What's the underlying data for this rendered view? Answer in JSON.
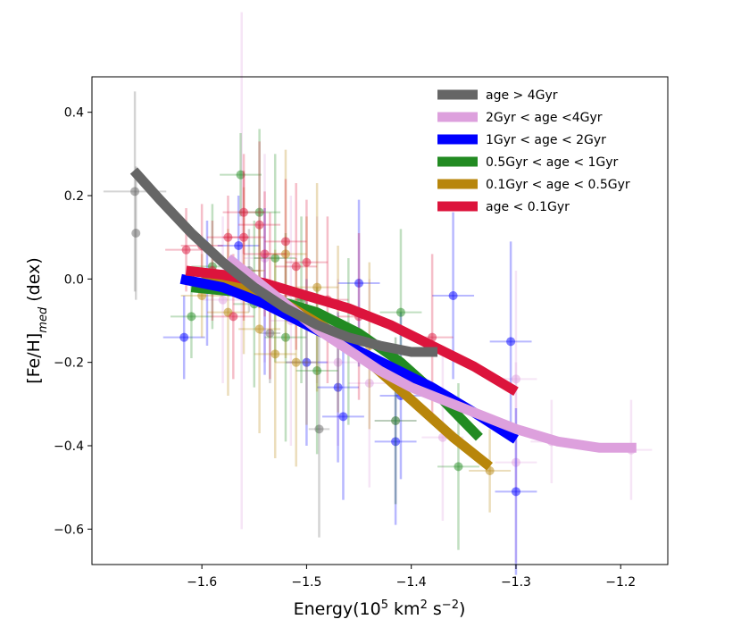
{
  "chart_data": {
    "type": "scatter",
    "title": "",
    "xlabel": "Energy(10⁵ km² s⁻²)",
    "ylabel": "[Fe/H]med (dex)",
    "xlim": [
      -1.705,
      -1.155
    ],
    "ylim": [
      -0.685,
      0.485
    ],
    "xticks": [
      -1.6,
      -1.5,
      -1.4,
      -1.3,
      -1.2
    ],
    "xtick_labels": [
      "−1.6",
      "−1.5",
      "−1.4",
      "−1.3",
      "−1.2"
    ],
    "yticks": [
      0.4,
      0.2,
      0.0,
      -0.2,
      -0.4,
      -0.6
    ],
    "ytick_labels": [
      "0.4",
      "0.2",
      "0.0",
      "−0.2",
      "−0.4",
      "−0.6"
    ],
    "legend_position": "top-right",
    "series": [
      {
        "name": "age > 4Gyr",
        "color": "#666666",
        "fit_x": [
          -1.665,
          -1.64,
          -1.61,
          -1.58,
          -1.55,
          -1.52,
          -1.49,
          -1.46,
          -1.43,
          -1.4,
          -1.375
        ],
        "fit_y": [
          0.26,
          0.19,
          0.11,
          0.04,
          -0.02,
          -0.07,
          -0.11,
          -0.14,
          -0.16,
          -0.175,
          -0.175
        ],
        "points": [
          {
            "x": -1.664,
            "y": 0.21,
            "yerr": 0.24,
            "xerr": 0.03
          },
          {
            "x": -1.663,
            "y": 0.11,
            "yerr": 0.16,
            "xerr": 0.0
          },
          {
            "x": -1.488,
            "y": -0.36,
            "yerr": 0.26,
            "xerr": 0.01
          },
          {
            "x": -1.535,
            "y": -0.13,
            "yerr": 0.12,
            "xerr": 0.01
          },
          {
            "x": -1.555,
            "y": 0.02,
            "yerr": 0.1,
            "xerr": 0.01
          }
        ]
      },
      {
        "name": "2Gyr < age <4Gyr",
        "color": "#dda0dd",
        "fit_x": [
          -1.575,
          -1.55,
          -1.52,
          -1.49,
          -1.46,
          -1.43,
          -1.4,
          -1.37,
          -1.34,
          -1.3,
          -1.26,
          -1.22,
          -1.185
        ],
        "fit_y": [
          0.05,
          0.0,
          -0.06,
          -0.12,
          -0.17,
          -0.22,
          -0.26,
          -0.29,
          -0.32,
          -0.36,
          -0.39,
          -0.405,
          -0.405
        ],
        "points": [
          {
            "x": -1.562,
            "y": 0.02,
            "yerr": 0.62,
            "xerr": 0.02
          },
          {
            "x": -1.515,
            "y": -0.1,
            "yerr": 0.3,
            "xerr": 0.02
          },
          {
            "x": -1.49,
            "y": -0.05,
            "yerr": 0.2,
            "xerr": 0.02
          },
          {
            "x": -1.47,
            "y": -0.2,
            "yerr": 0.2,
            "xerr": 0.02
          },
          {
            "x": -1.44,
            "y": -0.25,
            "yerr": 0.25,
            "xerr": 0.02
          },
          {
            "x": -1.415,
            "y": -0.34,
            "yerr": 0.2,
            "xerr": 0.02
          },
          {
            "x": -1.37,
            "y": -0.38,
            "yerr": 0.2,
            "xerr": 0.02
          },
          {
            "x": -1.3,
            "y": -0.24,
            "yerr": 0.26,
            "xerr": 0.02
          },
          {
            "x": -1.3,
            "y": -0.44,
            "yerr": 0.24,
            "xerr": 0.02
          },
          {
            "x": -1.266,
            "y": -0.39,
            "yerr": 0.1,
            "xerr": 0.02
          },
          {
            "x": -1.19,
            "y": -0.41,
            "yerr": 0.12,
            "xerr": 0.02
          },
          {
            "x": -1.58,
            "y": -0.05,
            "yerr": 0.2,
            "xerr": 0.02
          },
          {
            "x": -1.54,
            "y": 0.05,
            "yerr": 0.25,
            "xerr": 0.02
          }
        ]
      },
      {
        "name": "1Gyr < age < 2Gyr",
        "color": "#0000ff",
        "fit_x": [
          -1.62,
          -1.58,
          -1.54,
          -1.5,
          -1.46,
          -1.42,
          -1.38,
          -1.34,
          -1.3
        ],
        "fit_y": [
          0.0,
          -0.02,
          -0.06,
          -0.11,
          -0.16,
          -0.21,
          -0.26,
          -0.32,
          -0.385
        ],
        "points": [
          {
            "x": -1.617,
            "y": -0.14,
            "yerr": 0.1,
            "xerr": 0.02
          },
          {
            "x": -1.595,
            "y": -0.01,
            "yerr": 0.15,
            "xerr": 0.02
          },
          {
            "x": -1.565,
            "y": 0.08,
            "yerr": 0.12,
            "xerr": 0.02
          },
          {
            "x": -1.54,
            "y": -0.03,
            "yerr": 0.2,
            "xerr": 0.02
          },
          {
            "x": -1.5,
            "y": -0.2,
            "yerr": 0.2,
            "xerr": 0.02
          },
          {
            "x": -1.47,
            "y": -0.26,
            "yerr": 0.18,
            "xerr": 0.02
          },
          {
            "x": -1.465,
            "y": -0.33,
            "yerr": 0.2,
            "xerr": 0.02
          },
          {
            "x": -1.45,
            "y": -0.01,
            "yerr": 0.2,
            "xerr": 0.02
          },
          {
            "x": -1.415,
            "y": -0.39,
            "yerr": 0.2,
            "xerr": 0.02
          },
          {
            "x": -1.41,
            "y": -0.28,
            "yerr": 0.2,
            "xerr": 0.02
          },
          {
            "x": -1.36,
            "y": -0.04,
            "yerr": 0.2,
            "xerr": 0.02
          },
          {
            "x": -1.305,
            "y": -0.15,
            "yerr": 0.24,
            "xerr": 0.02
          },
          {
            "x": -1.3,
            "y": -0.51,
            "yerr": 0.2,
            "xerr": 0.02
          }
        ]
      },
      {
        "name": "0.5Gyr < age < 1Gyr",
        "color": "#228b22",
        "fit_x": [
          -1.61,
          -1.57,
          -1.53,
          -1.49,
          -1.45,
          -1.41,
          -1.37,
          -1.335
        ],
        "fit_y": [
          -0.02,
          -0.03,
          -0.05,
          -0.08,
          -0.13,
          -0.2,
          -0.29,
          -0.38
        ],
        "points": [
          {
            "x": -1.61,
            "y": -0.09,
            "yerr": 0.1,
            "xerr": 0.02
          },
          {
            "x": -1.59,
            "y": 0.03,
            "yerr": 0.15,
            "xerr": 0.02
          },
          {
            "x": -1.563,
            "y": 0.25,
            "yerr": 0.1,
            "xerr": 0.02
          },
          {
            "x": -1.55,
            "y": -0.06,
            "yerr": 0.2,
            "xerr": 0.02
          },
          {
            "x": -1.545,
            "y": 0.16,
            "yerr": 0.2,
            "xerr": 0.02
          },
          {
            "x": -1.53,
            "y": 0.05,
            "yerr": 0.25,
            "xerr": 0.02
          },
          {
            "x": -1.52,
            "y": -0.14,
            "yerr": 0.25,
            "xerr": 0.02
          },
          {
            "x": -1.505,
            "y": -0.05,
            "yerr": 0.2,
            "xerr": 0.02
          },
          {
            "x": -1.49,
            "y": -0.22,
            "yerr": 0.2,
            "xerr": 0.02
          },
          {
            "x": -1.41,
            "y": -0.08,
            "yerr": 0.2,
            "xerr": 0.02
          },
          {
            "x": -1.415,
            "y": -0.34,
            "yerr": 0.2,
            "xerr": 0.02
          },
          {
            "x": -1.355,
            "y": -0.45,
            "yerr": 0.2,
            "xerr": 0.02
          },
          {
            "x": -1.46,
            "y": -0.15,
            "yerr": 0.2,
            "xerr": 0.02
          }
        ]
      },
      {
        "name": "0.1Gyr < age < 0.5Gyr",
        "color": "#b8860b",
        "fit_x": [
          -1.6,
          -1.56,
          -1.52,
          -1.48,
          -1.44,
          -1.4,
          -1.36,
          -1.325
        ],
        "fit_y": [
          0.0,
          -0.02,
          -0.06,
          -0.12,
          -0.2,
          -0.29,
          -0.38,
          -0.45
        ],
        "points": [
          {
            "x": -1.6,
            "y": -0.04,
            "yerr": 0.1,
            "xerr": 0.02
          },
          {
            "x": -1.575,
            "y": -0.08,
            "yerr": 0.2,
            "xerr": 0.02
          },
          {
            "x": -1.545,
            "y": -0.12,
            "yerr": 0.25,
            "xerr": 0.02
          },
          {
            "x": -1.53,
            "y": -0.18,
            "yerr": 0.25,
            "xerr": 0.02
          },
          {
            "x": -1.52,
            "y": 0.06,
            "yerr": 0.25,
            "xerr": 0.02
          },
          {
            "x": -1.51,
            "y": -0.2,
            "yerr": 0.25,
            "xerr": 0.02
          },
          {
            "x": -1.5,
            "y": -0.1,
            "yerr": 0.25,
            "xerr": 0.02
          },
          {
            "x": -1.49,
            "y": -0.02,
            "yerr": 0.25,
            "xerr": 0.02
          },
          {
            "x": -1.47,
            "y": -0.12,
            "yerr": 0.2,
            "xerr": 0.02
          },
          {
            "x": -1.44,
            "y": -0.16,
            "yerr": 0.2,
            "xerr": 0.02
          },
          {
            "x": -1.325,
            "y": -0.46,
            "yerr": 0.1,
            "xerr": 0.02
          },
          {
            "x": -1.56,
            "y": 0.02,
            "yerr": 0.2,
            "xerr": 0.02
          }
        ]
      },
      {
        "name": "age < 0.1Gyr",
        "color": "#dc143c",
        "fit_x": [
          -1.615,
          -1.58,
          -1.54,
          -1.5,
          -1.46,
          -1.42,
          -1.38,
          -1.34,
          -1.3
        ],
        "fit_y": [
          0.02,
          0.01,
          -0.01,
          -0.04,
          -0.07,
          -0.11,
          -0.16,
          -0.21,
          -0.27
        ],
        "points": [
          {
            "x": -1.615,
            "y": 0.07,
            "yerr": 0.1,
            "xerr": 0.02
          },
          {
            "x": -1.6,
            "y": 0.08,
            "yerr": 0.1,
            "xerr": 0.02
          },
          {
            "x": -1.59,
            "y": 0.02,
            "yerr": 0.12,
            "xerr": 0.02
          },
          {
            "x": -1.575,
            "y": 0.1,
            "yerr": 0.1,
            "xerr": 0.02
          },
          {
            "x": -1.56,
            "y": 0.16,
            "yerr": 0.1,
            "xerr": 0.02
          },
          {
            "x": -1.56,
            "y": 0.1,
            "yerr": 0.2,
            "xerr": 0.02
          },
          {
            "x": -1.545,
            "y": 0.13,
            "yerr": 0.2,
            "xerr": 0.02
          },
          {
            "x": -1.54,
            "y": 0.06,
            "yerr": 0.15,
            "xerr": 0.02
          },
          {
            "x": -1.535,
            "y": -0.04,
            "yerr": 0.2,
            "xerr": 0.02
          },
          {
            "x": -1.52,
            "y": 0.09,
            "yerr": 0.15,
            "xerr": 0.02
          },
          {
            "x": -1.51,
            "y": 0.03,
            "yerr": 0.2,
            "xerr": 0.02
          },
          {
            "x": -1.5,
            "y": 0.04,
            "yerr": 0.15,
            "xerr": 0.02
          },
          {
            "x": -1.57,
            "y": -0.09,
            "yerr": 0.15,
            "xerr": 0.02
          },
          {
            "x": -1.48,
            "y": -0.05,
            "yerr": 0.2,
            "xerr": 0.02
          },
          {
            "x": -1.45,
            "y": -0.09,
            "yerr": 0.2,
            "xerr": 0.02
          },
          {
            "x": -1.38,
            "y": -0.14,
            "yerr": 0.2,
            "xerr": 0.02
          }
        ]
      }
    ]
  }
}
